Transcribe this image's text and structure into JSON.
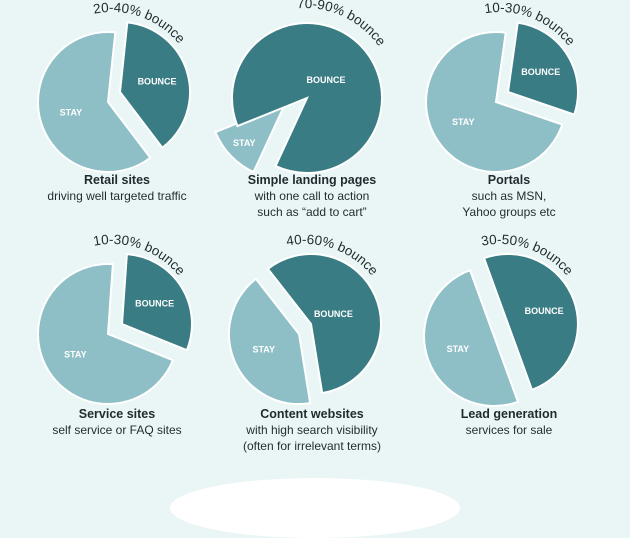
{
  "colors": {
    "background": "#eaf5f6",
    "stay": "#8fbfc6",
    "bounce": "#3a7c84",
    "text": "#1f2b2e"
  },
  "chart_data": [
    {
      "type": "pie",
      "title": "Retail sites",
      "subtitle_lines": [
        "driving well targeted traffic"
      ],
      "range_label": "20-40% bounce",
      "bounce_range": [
        20,
        40
      ],
      "slices": [
        {
          "label": "BOUNCE",
          "value": 38
        },
        {
          "label": "STAY",
          "value": 62
        }
      ]
    },
    {
      "type": "pie",
      "title": "Simple landing pages",
      "subtitle_lines": [
        "with one call to action",
        "such as “add to cart”"
      ],
      "range_label": "70-90% bounce",
      "bounce_range": [
        70,
        90
      ],
      "slices": [
        {
          "label": "BOUNCE",
          "value": 88
        },
        {
          "label": "STAY",
          "value": 12
        }
      ]
    },
    {
      "type": "pie",
      "title": "Portals",
      "subtitle_lines": [
        "such as MSN,",
        "Yahoo groups etc"
      ],
      "range_label": "10-30% bounce",
      "bounce_range": [
        10,
        30
      ],
      "slices": [
        {
          "label": "BOUNCE",
          "value": 28
        },
        {
          "label": "STAY",
          "value": 72
        }
      ]
    },
    {
      "type": "pie",
      "title": "Service sites",
      "subtitle_lines": [
        "self service or FAQ sites"
      ],
      "range_label": "10-30% bounce",
      "bounce_range": [
        10,
        30
      ],
      "slices": [
        {
          "label": "BOUNCE",
          "value": 30
        },
        {
          "label": "STAY",
          "value": 70
        }
      ]
    },
    {
      "type": "pie",
      "title": "Content websites",
      "subtitle_lines": [
        "with high search visibility",
        "(often for irrelevant terms)"
      ],
      "range_label": "40-60% bounce",
      "bounce_range": [
        40,
        60
      ],
      "slices": [
        {
          "label": "BOUNCE",
          "value": 58
        },
        {
          "label": "STAY",
          "value": 42
        }
      ]
    },
    {
      "type": "pie",
      "title": "Lead generation",
      "subtitle_lines": [
        "services for sale"
      ],
      "range_label": "30-50% bounce",
      "bounce_range": [
        30,
        50
      ],
      "slices": [
        {
          "label": "BOUNCE",
          "value": 50
        },
        {
          "label": "STAY",
          "value": 50
        }
      ]
    }
  ]
}
